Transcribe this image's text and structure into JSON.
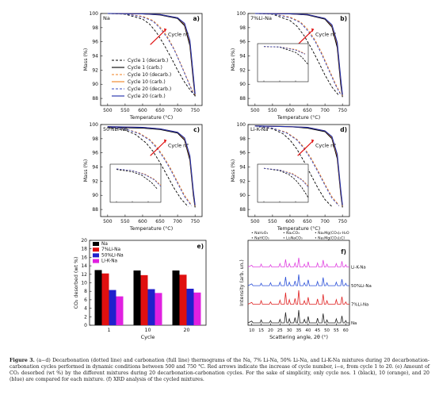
{
  "chart_data": [
    {
      "type": "line",
      "panel_tag": "Na",
      "panel_letter": "a)",
      "xlabel": "Temperature (°C)",
      "ylabel": "Mass (%)",
      "xlim": [
        480,
        770
      ],
      "ylim": [
        87,
        100
      ],
      "xticks": [
        500,
        550,
        600,
        650,
        700,
        750
      ],
      "yticks": [
        88,
        90,
        92,
        94,
        96,
        98,
        100
      ],
      "annotation": "Cycle n°",
      "legend_position": "bottom-left",
      "series": [
        {
          "name": "Cycle 1 (decarb.)",
          "color": "#000000",
          "style": "dashed",
          "x": [
            500,
            550,
            600,
            620,
            640,
            660,
            680,
            700,
            720,
            740,
            750
          ],
          "y": [
            100,
            99.9,
            99.2,
            98.5,
            97.3,
            95.7,
            93.9,
            92.0,
            90.3,
            88.9,
            88.4
          ]
        },
        {
          "name": "Cycle 1 (carb.)",
          "color": "#000000",
          "style": "solid",
          "x": [
            500,
            600,
            650,
            700,
            720,
            735,
            745,
            750
          ],
          "y": [
            100,
            99.95,
            99.8,
            99.3,
            98.3,
            95.5,
            90.5,
            88.3
          ]
        },
        {
          "name": "Cycle 10 (decarb.)",
          "color": "#f08020",
          "style": "dashed",
          "x": [
            500,
            550,
            600,
            630,
            650,
            670,
            690,
            710,
            730,
            745
          ],
          "y": [
            100,
            99.95,
            99.6,
            99.0,
            98.1,
            96.8,
            95.0,
            92.8,
            90.5,
            88.8
          ]
        },
        {
          "name": "Cycle 10 (carb.)",
          "color": "#f08020",
          "style": "solid",
          "x": [
            500,
            600,
            650,
            700,
            720,
            735,
            745,
            750
          ],
          "y": [
            100,
            99.95,
            99.85,
            99.4,
            98.5,
            96.0,
            91.0,
            88.5
          ]
        },
        {
          "name": "Cycle 20 (decarb.)",
          "color": "#3a4cc0",
          "style": "dashed",
          "x": [
            500,
            550,
            600,
            630,
            650,
            670,
            690,
            710,
            730,
            745
          ],
          "y": [
            100,
            99.95,
            99.5,
            98.9,
            97.9,
            96.6,
            94.9,
            92.7,
            90.4,
            88.6
          ]
        },
        {
          "name": "Cycle 20 (carb.)",
          "color": "#1c2ba8",
          "style": "solid",
          "x": [
            500,
            600,
            650,
            700,
            720,
            735,
            745,
            750
          ],
          "y": [
            100,
            99.95,
            99.85,
            99.4,
            98.6,
            96.2,
            91.2,
            88.6
          ]
        }
      ]
    },
    {
      "type": "line",
      "panel_tag": "7%Li-Na",
      "panel_letter": "b)",
      "xlabel": "Temperature (°C)",
      "ylabel": "Mass (%)",
      "xlim": [
        480,
        770
      ],
      "ylim": [
        87,
        100
      ],
      "xticks": [
        500,
        550,
        600,
        650,
        700,
        750
      ],
      "yticks": [
        88,
        90,
        92,
        94,
        96,
        98,
        100
      ],
      "annotation": "Cycle n°",
      "series": [
        {
          "name": "Cycle 1 (decarb.)",
          "color": "#000000",
          "style": "dashed",
          "x": [
            500,
            550,
            600,
            620,
            640,
            660,
            680,
            700,
            720,
            740
          ],
          "y": [
            100,
            99.9,
            99.0,
            98.2,
            96.9,
            95.2,
            93.3,
            91.3,
            89.6,
            88.4
          ]
        },
        {
          "name": "Cycle 1 (carb.)",
          "color": "#000000",
          "style": "solid",
          "x": [
            500,
            600,
            650,
            700,
            720,
            735,
            745,
            750
          ],
          "y": [
            100,
            99.95,
            99.8,
            99.2,
            98.1,
            95.2,
            90.0,
            88.2
          ]
        },
        {
          "name": "Cycle 10 (decarb.)",
          "color": "#f08020",
          "style": "dashed",
          "x": [
            500,
            550,
            600,
            630,
            650,
            670,
            690,
            710,
            730,
            745
          ],
          "y": [
            100,
            99.95,
            99.5,
            98.8,
            97.8,
            96.4,
            94.5,
            92.3,
            90.1,
            88.6
          ]
        },
        {
          "name": "Cycle 10 (carb.)",
          "color": "#f08020",
          "style": "solid",
          "x": [
            500,
            600,
            650,
            700,
            720,
            735,
            745,
            750
          ],
          "y": [
            100,
            99.95,
            99.85,
            99.3,
            98.3,
            95.7,
            90.6,
            88.4
          ]
        },
        {
          "name": "Cycle 20 (decarb.)",
          "color": "#3a4cc0",
          "style": "dashed",
          "x": [
            500,
            550,
            600,
            630,
            650,
            670,
            690,
            710,
            730,
            745
          ],
          "y": [
            100,
            99.95,
            99.4,
            98.7,
            97.6,
            96.2,
            94.3,
            92.1,
            89.9,
            88.5
          ]
        },
        {
          "name": "Cycle 20 (carb.)",
          "color": "#1c2ba8",
          "style": "solid",
          "x": [
            500,
            600,
            650,
            700,
            720,
            735,
            745,
            750
          ],
          "y": [
            100,
            99.95,
            99.85,
            99.3,
            98.4,
            95.9,
            90.8,
            88.5
          ]
        }
      ]
    },
    {
      "type": "line",
      "panel_tag": "50%Li-Na",
      "panel_letter": "c)",
      "xlabel": "Temperature (°C)",
      "ylabel": "Mass (%)",
      "xlim": [
        480,
        770
      ],
      "ylim": [
        87,
        100
      ],
      "xticks": [
        500,
        550,
        600,
        650,
        700,
        750
      ],
      "yticks": [
        88,
        90,
        92,
        94,
        96,
        98,
        100
      ],
      "annotation": "Cycle n°",
      "series": [
        {
          "name": "Cycle 1 (decarb.)",
          "color": "#000000",
          "style": "dashed",
          "x": [
            500,
            550,
            580,
            610,
            630,
            650,
            670,
            690,
            710,
            730
          ],
          "y": [
            99.6,
            99.2,
            98.6,
            97.4,
            96.2,
            94.6,
            92.8,
            91.0,
            89.5,
            88.4
          ]
        },
        {
          "name": "Cycle 1 (carb.)",
          "color": "#000000",
          "style": "solid",
          "x": [
            500,
            600,
            650,
            700,
            720,
            735,
            745,
            750
          ],
          "y": [
            99.6,
            99.5,
            99.3,
            98.8,
            97.8,
            95.0,
            90.0,
            88.3
          ]
        },
        {
          "name": "Cycle 10 (decarb.)",
          "color": "#f08020",
          "style": "dashed",
          "x": [
            500,
            550,
            590,
            620,
            640,
            660,
            680,
            700,
            720,
            740
          ],
          "y": [
            99.7,
            99.4,
            98.8,
            97.9,
            96.9,
            95.5,
            93.8,
            91.9,
            90.0,
            88.6
          ]
        },
        {
          "name": "Cycle 10 (carb.)",
          "color": "#f08020",
          "style": "solid",
          "x": [
            500,
            600,
            650,
            700,
            720,
            735,
            745,
            750
          ],
          "y": [
            99.7,
            99.6,
            99.4,
            98.9,
            98.0,
            95.4,
            90.4,
            88.5
          ]
        },
        {
          "name": "Cycle 20 (decarb.)",
          "color": "#3a4cc0",
          "style": "dashed",
          "x": [
            500,
            550,
            590,
            620,
            640,
            660,
            680,
            700,
            720,
            740
          ],
          "y": [
            99.7,
            99.4,
            98.7,
            97.8,
            96.7,
            95.3,
            93.6,
            91.7,
            89.8,
            88.5
          ]
        },
        {
          "name": "Cycle 20 (carb.)",
          "color": "#1c2ba8",
          "style": "solid",
          "x": [
            500,
            600,
            650,
            700,
            720,
            735,
            745,
            750
          ],
          "y": [
            99.7,
            99.6,
            99.4,
            98.9,
            98.1,
            95.6,
            90.6,
            88.6
          ]
        }
      ]
    },
    {
      "type": "line",
      "panel_tag": "Li-K-Na",
      "panel_letter": "d)",
      "xlabel": "Temperature (°C)",
      "ylabel": "Mass (%)",
      "xlim": [
        480,
        770
      ],
      "ylim": [
        87,
        100
      ],
      "xticks": [
        500,
        550,
        600,
        650,
        700,
        750
      ],
      "yticks": [
        88,
        90,
        92,
        94,
        96,
        98,
        100
      ],
      "annotation": "Cycle n°",
      "series": [
        {
          "name": "Cycle 1 (decarb.)",
          "color": "#000000",
          "style": "dashed",
          "x": [
            500,
            550,
            580,
            600,
            620,
            640,
            660,
            680,
            700,
            720
          ],
          "y": [
            99.8,
            99.4,
            98.7,
            97.8,
            96.5,
            94.8,
            92.9,
            91.0,
            89.4,
            88.4
          ]
        },
        {
          "name": "Cycle 1 (carb.)",
          "color": "#000000",
          "style": "solid",
          "x": [
            500,
            600,
            650,
            700,
            720,
            735,
            745,
            750
          ],
          "y": [
            99.8,
            99.7,
            99.5,
            99.0,
            98.0,
            95.2,
            90.2,
            88.3
          ]
        },
        {
          "name": "Cycle 10 (decarb.)",
          "color": "#f08020",
          "style": "dashed",
          "x": [
            500,
            550,
            590,
            620,
            640,
            660,
            680,
            700,
            720,
            740
          ],
          "y": [
            99.8,
            99.5,
            98.9,
            97.9,
            96.8,
            95.3,
            93.5,
            91.6,
            89.8,
            88.6
          ]
        },
        {
          "name": "Cycle 10 (carb.)",
          "color": "#f08020",
          "style": "solid",
          "x": [
            500,
            600,
            650,
            700,
            720,
            735,
            745,
            750
          ],
          "y": [
            99.8,
            99.7,
            99.6,
            99.1,
            98.2,
            95.6,
            90.6,
            88.5
          ]
        },
        {
          "name": "Cycle 20 (decarb.)",
          "color": "#3a4cc0",
          "style": "dashed",
          "x": [
            500,
            550,
            590,
            620,
            640,
            660,
            680,
            700,
            720,
            740
          ],
          "y": [
            99.8,
            99.5,
            98.8,
            97.8,
            96.6,
            95.1,
            93.3,
            91.4,
            89.6,
            88.5
          ]
        },
        {
          "name": "Cycle 20 (carb.)",
          "color": "#1c2ba8",
          "style": "solid",
          "x": [
            500,
            600,
            650,
            700,
            720,
            735,
            745,
            750
          ],
          "y": [
            99.8,
            99.7,
            99.6,
            99.1,
            98.3,
            95.8,
            90.8,
            88.6
          ]
        }
      ]
    },
    {
      "type": "bar",
      "panel_letter": "e)",
      "categories": [
        "1",
        "10",
        "20"
      ],
      "xlabel": "Cycle",
      "ylabel": "CO₂ desorbed (wt %)",
      "ylim": [
        0,
        20
      ],
      "yticks": [
        0,
        2,
        4,
        6,
        8,
        10,
        12,
        14,
        16,
        18,
        20
      ],
      "legend_position": "top-left",
      "series": [
        {
          "name": "Na",
          "color": "#000000",
          "values": [
            13.0,
            12.9,
            12.9
          ]
        },
        {
          "name": "7%Li-Na",
          "color": "#e01010",
          "values": [
            12.2,
            11.8,
            11.9
          ]
        },
        {
          "name": "50%Li-Na",
          "color": "#2020cc",
          "values": [
            8.3,
            8.5,
            8.6
          ]
        },
        {
          "name": "Li-K-Na",
          "color": "#e020e0",
          "values": [
            6.8,
            7.6,
            7.7
          ]
        }
      ]
    },
    {
      "type": "line",
      "panel_letter": "f)",
      "xlabel": "Scattering angle, 2θ (°)",
      "ylabel": "Intensity (arb. un.)",
      "xlim": [
        8,
        62
      ],
      "xticks": [
        10,
        15,
        20,
        25,
        30,
        35,
        40,
        45,
        50,
        55,
        60
      ],
      "legend_entries": [
        "NaH₂O₃",
        "NaHCO₃",
        "Na₂CO₃",
        "Li₂NaCO₃",
        "Na₂Mg(CO₃)₂·H₂O",
        "Na₃Mg(CO₃)₂Cl"
      ],
      "series": [
        {
          "name": "Na",
          "color": "#222222",
          "offset": 0,
          "x": [
            10,
            15,
            20,
            25,
            28,
            30,
            33,
            35,
            38,
            40,
            45,
            48,
            50,
            55,
            58,
            60
          ],
          "y": [
            0.3,
            0.5,
            0.4,
            0.6,
            1.8,
            0.7,
            0.9,
            2.2,
            0.6,
            1.1,
            0.8,
            1.6,
            0.5,
            0.7,
            1.2,
            0.4
          ]
        },
        {
          "name": "7%Li-Na",
          "color": "#e02020",
          "offset": 3.2,
          "x": [
            10,
            15,
            20,
            25,
            28,
            30,
            33,
            35,
            38,
            40,
            45,
            48,
            50,
            55,
            58,
            60
          ],
          "y": [
            0.3,
            0.6,
            0.4,
            0.7,
            2.0,
            0.8,
            1.0,
            2.4,
            0.6,
            1.2,
            0.9,
            1.7,
            0.6,
            0.8,
            1.3,
            0.4
          ]
        },
        {
          "name": "50%Li-Na",
          "color": "#2a4fd8",
          "offset": 6.4,
          "x": [
            10,
            15,
            20,
            25,
            28,
            30,
            33,
            35,
            38,
            40,
            45,
            48,
            50,
            55,
            58,
            60
          ],
          "y": [
            0.3,
            0.4,
            0.5,
            0.6,
            1.5,
            0.6,
            0.8,
            1.9,
            0.5,
            1.0,
            0.7,
            1.4,
            0.5,
            0.6,
            1.1,
            0.4
          ]
        },
        {
          "name": "Li-K-Na",
          "color": "#e040e0",
          "offset": 9.6,
          "x": [
            10,
            15,
            20,
            25,
            28,
            30,
            33,
            35,
            38,
            40,
            45,
            48,
            50,
            55,
            58,
            60
          ],
          "y": [
            0.3,
            0.5,
            0.4,
            0.6,
            1.3,
            0.6,
            0.7,
            1.6,
            0.5,
            0.9,
            0.7,
            1.2,
            0.5,
            0.6,
            1.0,
            0.4
          ]
        }
      ]
    }
  ],
  "caption": {
    "label": "Figure 3.",
    "text": "(a−d) Decarbonation (dotted line) and carbonation (full line) thermograms of the Na, 7% Li-Na, 50% Li-Na, and Li-K-Na mixtures during 20 decarbonation-carbonation cycles performed in dynamic conditions between 500 and 750 °C. Red arrows indicate the increase of cycle number, i−e, from cycle 1 to 20. (e) Amount of CO₂ desorbed (wt %) by the different mixtures during 20 decarbonation-carbonation cycles. For the sake of simplicity, only cycle nos. 1 (black), 10 (orange), and 20 (blue) are compared for each mixture. (f) XRD analysis of the cycled mixtures."
  }
}
